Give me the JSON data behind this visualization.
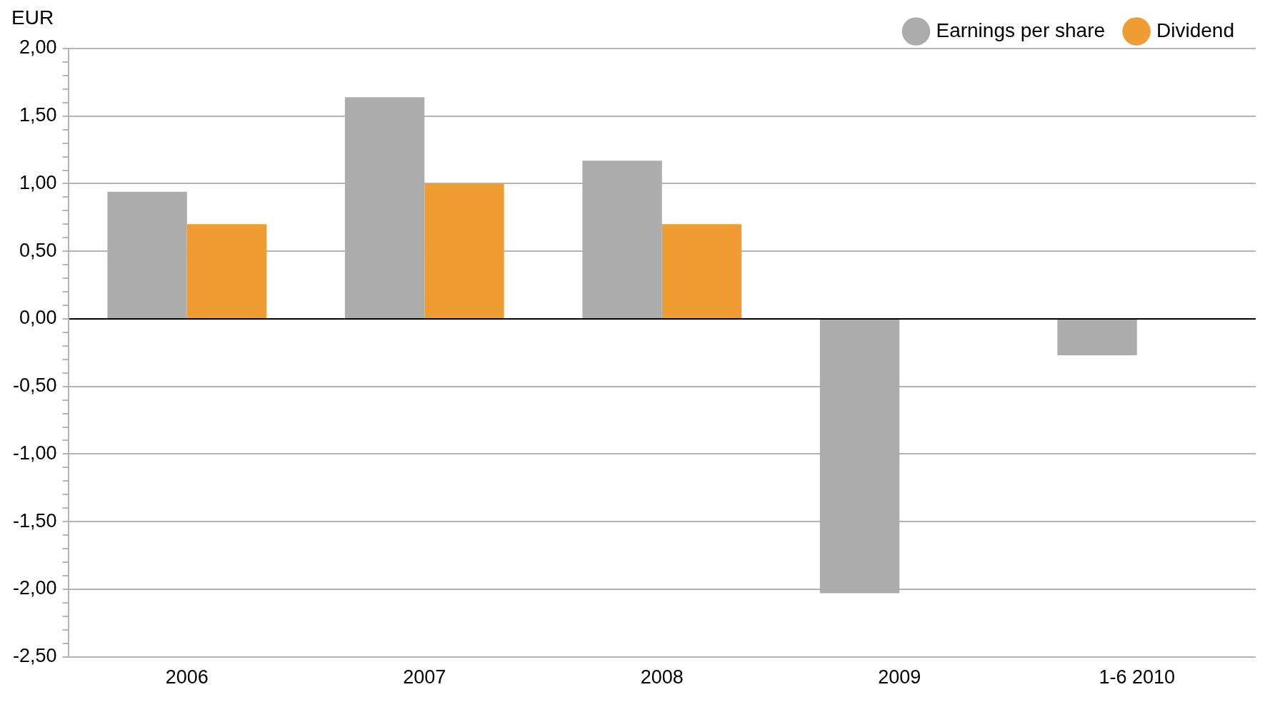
{
  "chart_data": {
    "type": "bar",
    "ylabel": "EUR",
    "categories": [
      "2006",
      "2007",
      "2008",
      "2009",
      "1-6 2010"
    ],
    "series": [
      {
        "name": "Earnings per share",
        "color": "#acacac",
        "values": [
          0.94,
          1.64,
          1.17,
          -2.03,
          -0.27
        ]
      },
      {
        "name": "Dividend",
        "color": "#ef9c32",
        "values": [
          0.7,
          1.0,
          0.7,
          null,
          null
        ]
      }
    ],
    "ylim": [
      -2.5,
      2.0
    ],
    "yticks": [
      {
        "value": -2.5,
        "label": "-2,50"
      },
      {
        "value": -2.4,
        "label": null
      },
      {
        "value": -2.3,
        "label": null
      },
      {
        "value": -2.2,
        "label": null
      },
      {
        "value": -2.1,
        "label": null
      },
      {
        "value": -2.0,
        "label": "-2,00"
      },
      {
        "value": -1.9,
        "label": null
      },
      {
        "value": -1.8,
        "label": null
      },
      {
        "value": -1.7,
        "label": null
      },
      {
        "value": -1.6,
        "label": null
      },
      {
        "value": -1.5,
        "label": "-1,50"
      },
      {
        "value": -1.4,
        "label": null
      },
      {
        "value": -1.3,
        "label": null
      },
      {
        "value": -1.2,
        "label": null
      },
      {
        "value": -1.1,
        "label": null
      },
      {
        "value": -1.0,
        "label": "-1,00"
      },
      {
        "value": -0.9,
        "label": null
      },
      {
        "value": -0.8,
        "label": null
      },
      {
        "value": -0.7,
        "label": null
      },
      {
        "value": -0.6,
        "label": null
      },
      {
        "value": -0.5,
        "label": "-0,50"
      },
      {
        "value": -0.4,
        "label": null
      },
      {
        "value": -0.3,
        "label": null
      },
      {
        "value": -0.2,
        "label": null
      },
      {
        "value": -0.1,
        "label": null
      },
      {
        "value": 0,
        "label": "0,00"
      },
      {
        "value": 0.1,
        "label": null
      },
      {
        "value": 0.2,
        "label": null
      },
      {
        "value": 0.3,
        "label": null
      },
      {
        "value": 0.4,
        "label": null
      },
      {
        "value": 0.5,
        "label": "0,50"
      },
      {
        "value": 0.6,
        "label": null
      },
      {
        "value": 0.7,
        "label": null
      },
      {
        "value": 0.8,
        "label": null
      },
      {
        "value": 0.9,
        "label": null
      },
      {
        "value": 1.0,
        "label": "1,00"
      },
      {
        "value": 1.1,
        "label": null
      },
      {
        "value": 1.2,
        "label": null
      },
      {
        "value": 1.3,
        "label": null
      },
      {
        "value": 1.4,
        "label": null
      },
      {
        "value": 1.5,
        "label": "1,50"
      },
      {
        "value": 1.6,
        "label": null
      },
      {
        "value": 1.7,
        "label": null
      },
      {
        "value": 1.8,
        "label": null
      },
      {
        "value": 1.9,
        "label": null
      },
      {
        "value": 2.0,
        "label": "2,00"
      }
    ],
    "grid": "y",
    "legend": "top right"
  }
}
